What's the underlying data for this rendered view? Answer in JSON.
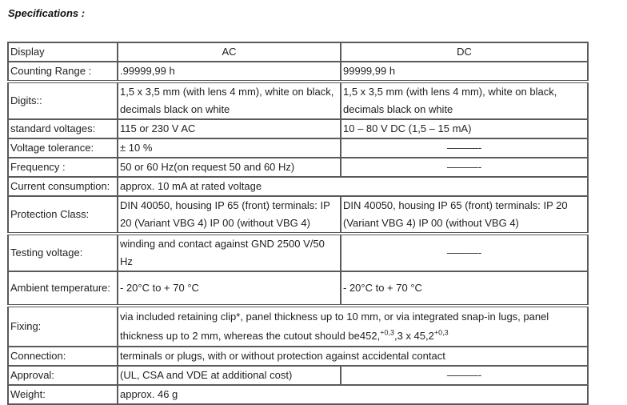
{
  "title": "Specifications :",
  "header": {
    "label": "Display",
    "ac": "AC",
    "dc": "DC"
  },
  "rows": [
    {
      "label": "Counting Range :",
      "ac": ".99999,99 h",
      "dc": "99999,99 h"
    },
    {
      "label": "Digits::",
      "ac": "1,5 x 3,5 mm (with lens 4 mm), white on black, decimals black on white",
      "dc": "1,5 x 3,5 mm (with lens 4 mm), white on black, decimals black on white"
    },
    {
      "label": "standard voltages:",
      "ac": "115 or 230 V AC",
      "dc": "10 – 80 V DC (1,5 – 15 mA)"
    },
    {
      "label": "Voltage tolerance:",
      "ac": "± 10 %",
      "dc": "———-"
    },
    {
      "label": "Frequency :",
      "ac": "50 or 60 Hz(on request 50 and 60 Hz)",
      "dc": "———-"
    },
    {
      "label": "Current consumption:",
      "value": "approx. 10 mA at rated voltage"
    },
    {
      "label": "Protection Class:",
      "ac": "DIN 40050, housing IP 65 (front) terminals: IP 20 (Variant VBG 4) IP 00 (without VBG 4)",
      "dc": "DIN 40050, housing IP 65 (front) terminals: IP 20 (Variant VBG 4) IP 00 (without VBG 4)"
    },
    {
      "label": "Testing voltage:",
      "ac": "winding and contact against GND 2500 V/50 Hz",
      "dc": "———-"
    },
    {
      "label": "Ambient temperature:",
      "ac": "- 20°C to + 70 °C",
      "dc": "- 20°C to + 70 °C"
    },
    {
      "label": "Fixing:",
      "value": "via included retaining clip*, panel thickness up to 10 mm, or via integrated snap-in lugs, panel thickness up to 2 mm, whereas the cutout should be452,",
      "sup1": "+0,3",
      "mid": ",3 x 45,2",
      "sup2": "+0,3"
    },
    {
      "label": "Connection:",
      "value": "terminals or plugs, with or without protection against accidental contact"
    },
    {
      "label": "Approval:",
      "ac": "(UL, CSA and VDE at additional cost)",
      "dc": "———-"
    },
    {
      "label": "Weight:",
      "value": "approx. 46 g"
    }
  ]
}
